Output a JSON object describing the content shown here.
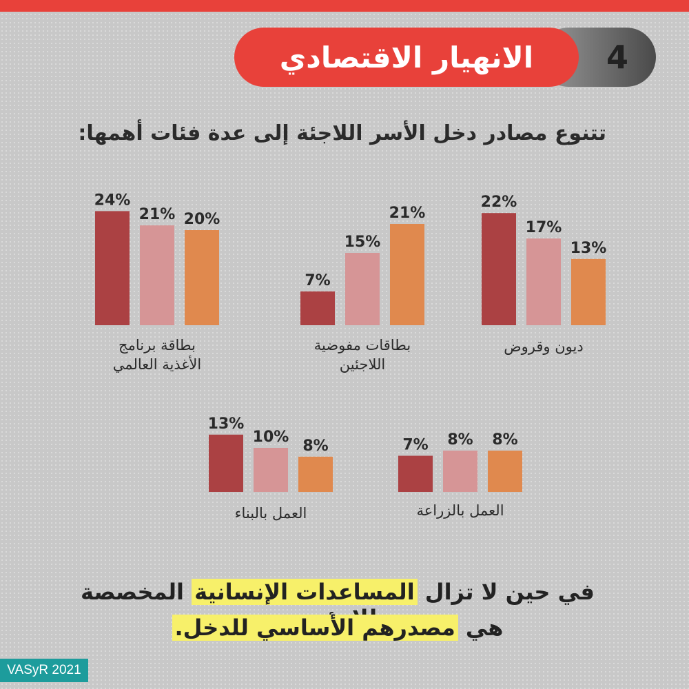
{
  "header": {
    "number": "4",
    "title": "الانهيار الاقتصادي",
    "accent_color": "#e8413a"
  },
  "subtitle": "تتنوع مصادر دخل الأسر اللاجئة إلى عدة فئات أهمها:",
  "chart_data": [
    {
      "type": "bar",
      "category": "بطاقة برنامج الأغذية العالمي",
      "label_lines": [
        "بطاقة برنامج",
        "الأغذية العالمي"
      ],
      "values": [
        24,
        21,
        20
      ],
      "value_labels": [
        "24%",
        "21%",
        "20%"
      ],
      "unit": "%",
      "colors": [
        "#ab4143",
        "#d69596",
        "#e0894e"
      ]
    },
    {
      "type": "bar",
      "category": "بطاقات مفوضية اللاجئين",
      "label_lines": [
        "بطاقات مفوضية",
        "اللاجئين"
      ],
      "values": [
        7,
        15,
        21
      ],
      "value_labels": [
        "7%",
        "15%",
        "21%"
      ],
      "unit": "%",
      "colors": [
        "#ab4143",
        "#d69596",
        "#e0894e"
      ]
    },
    {
      "type": "bar",
      "category": "ديون وقروض",
      "label_lines": [
        "ديون وقروض"
      ],
      "values": [
        22,
        17,
        13
      ],
      "value_labels": [
        "22%",
        "17%",
        "13%"
      ],
      "unit": "%",
      "colors": [
        "#ab4143",
        "#d69596",
        "#e0894e"
      ]
    },
    {
      "type": "bar",
      "category": "العمل بالبناء",
      "label_lines": [
        "العمل بالبناء"
      ],
      "values": [
        13,
        10,
        8
      ],
      "value_labels": [
        "13%",
        "10%",
        "8%"
      ],
      "unit": "%",
      "colors": [
        "#ab4143",
        "#d69596",
        "#e0894e"
      ]
    },
    {
      "type": "bar",
      "category": "العمل بالزراعة",
      "label_lines": [
        "العمل بالزراعة"
      ],
      "values": [
        7,
        8,
        8
      ],
      "value_labels": [
        "7%",
        "8%",
        "8%"
      ],
      "unit": "%",
      "colors": [
        "#ab4143",
        "#d69596",
        "#e0894e"
      ]
    }
  ],
  "footer": {
    "line1_pre": "في حين لا تزال ",
    "line1_highlight": "المساعدات الإنسانية",
    "line1_post": " المخصصة للاجئين",
    "line2_pre": "هي ",
    "line2_highlight": "مصدرهم الأساسي للدخل.",
    "highlight_color": "#f7f06a"
  },
  "badge": "VASyR 2021"
}
